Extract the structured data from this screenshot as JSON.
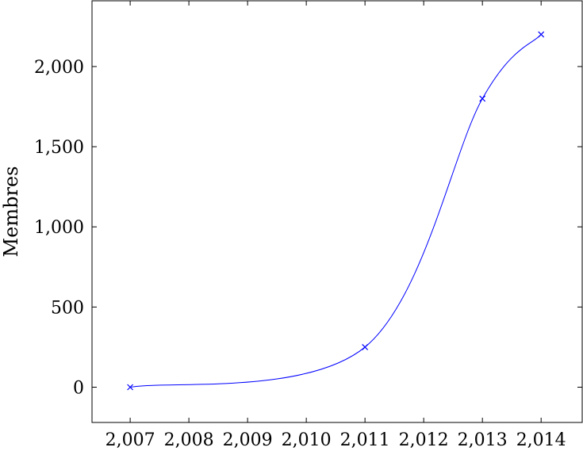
{
  "chart_data": {
    "type": "line",
    "ylabel": "Membres",
    "xlim": [
      2006.35,
      2014.7
    ],
    "ylim": [
      -220,
      2410
    ],
    "x_ticks": [
      2007,
      2008,
      2009,
      2010,
      2011,
      2012,
      2013,
      2014
    ],
    "x_tick_labels": [
      "2,007",
      "2,008",
      "2,009",
      "2,010",
      "2,011",
      "2,012",
      "2,013",
      "2,014"
    ],
    "y_ticks": [
      0,
      500,
      1000,
      1500,
      2000
    ],
    "y_tick_labels": [
      "0",
      "500",
      "1,000",
      "1,500",
      "2,000"
    ],
    "grid": false,
    "smooth": true,
    "marker": "x",
    "series": [
      {
        "color": "#0000ff",
        "points": [
          {
            "x": 2007,
            "y": 0
          },
          {
            "x": 2011,
            "y": 250
          },
          {
            "x": 2013,
            "y": 1800
          },
          {
            "x": 2014,
            "y": 2200
          }
        ]
      }
    ]
  }
}
